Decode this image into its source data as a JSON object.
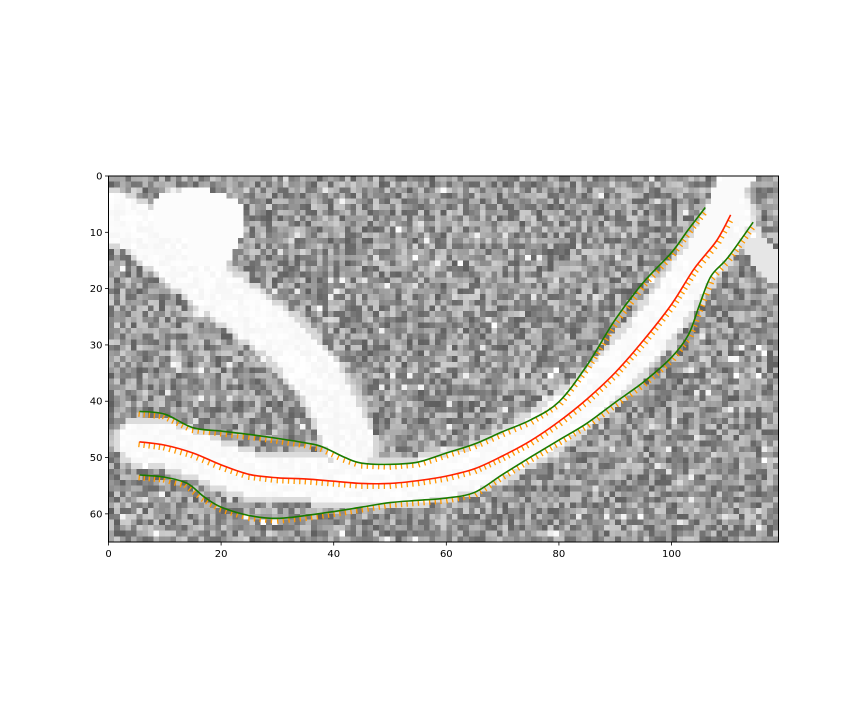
{
  "colors": {
    "centerline": "#ff2200",
    "boundary": "#1a7a00",
    "normals": "#ff9900",
    "frame": "#000000"
  },
  "chart_data": {
    "type": "image",
    "title": "",
    "xlabel": "",
    "ylabel": "",
    "image_width": 119,
    "image_height": 65,
    "xlim": [
      0,
      119
    ],
    "ylim": [
      65,
      0
    ],
    "x_ticks": [
      0,
      20,
      40,
      60,
      80,
      100
    ],
    "y_ticks": [
      0,
      10,
      20,
      30,
      40,
      50,
      60
    ],
    "grid": false,
    "legend": "none",
    "series": [
      {
        "role": "centerline",
        "x": [
          5.5,
          10,
          15,
          20,
          25,
          30,
          35,
          40,
          45,
          50,
          55,
          60,
          65,
          70,
          75,
          80,
          85,
          90,
          95,
          100,
          104,
          108,
          110.5
        ],
        "y": [
          47.2,
          47.8,
          49.2,
          51.3,
          53.0,
          53.6,
          53.8,
          54.2,
          54.6,
          54.6,
          54.1,
          53.3,
          52.0,
          49.7,
          47.0,
          43.6,
          39.6,
          34.9,
          29.2,
          22.8,
          16.5,
          11.5,
          6.9
        ]
      },
      {
        "role": "upper-boundary",
        "x": [
          5.5,
          10,
          15,
          20,
          25,
          30,
          35,
          38,
          42,
          45,
          50,
          55,
          60,
          65,
          70,
          75,
          80,
          85,
          90,
          95,
          100,
          103,
          106
        ],
        "y": [
          41.8,
          42.3,
          44.7,
          45.3,
          45.9,
          46.6,
          47.4,
          48.1,
          50.0,
          51.0,
          51.2,
          50.8,
          49.2,
          47.6,
          45.4,
          43.3,
          40.1,
          33.6,
          25.5,
          18.9,
          13.6,
          9.5,
          5.6
        ]
      },
      {
        "role": "lower-boundary",
        "x": [
          5.5,
          10,
          14,
          17,
          20,
          25,
          30,
          35,
          40,
          45,
          50,
          55,
          60,
          65,
          70,
          75,
          80,
          85,
          90,
          95,
          100,
          103,
          105,
          107,
          110,
          114.5
        ],
        "y": [
          53.1,
          53.5,
          54.6,
          57.0,
          58.8,
          60.3,
          60.8,
          60.3,
          59.6,
          58.8,
          58.0,
          57.6,
          57.2,
          56.2,
          53.0,
          49.9,
          46.9,
          43.9,
          40.2,
          36.6,
          32.2,
          28.2,
          22.8,
          17.8,
          14.5,
          8.2
        ]
      }
    ]
  }
}
